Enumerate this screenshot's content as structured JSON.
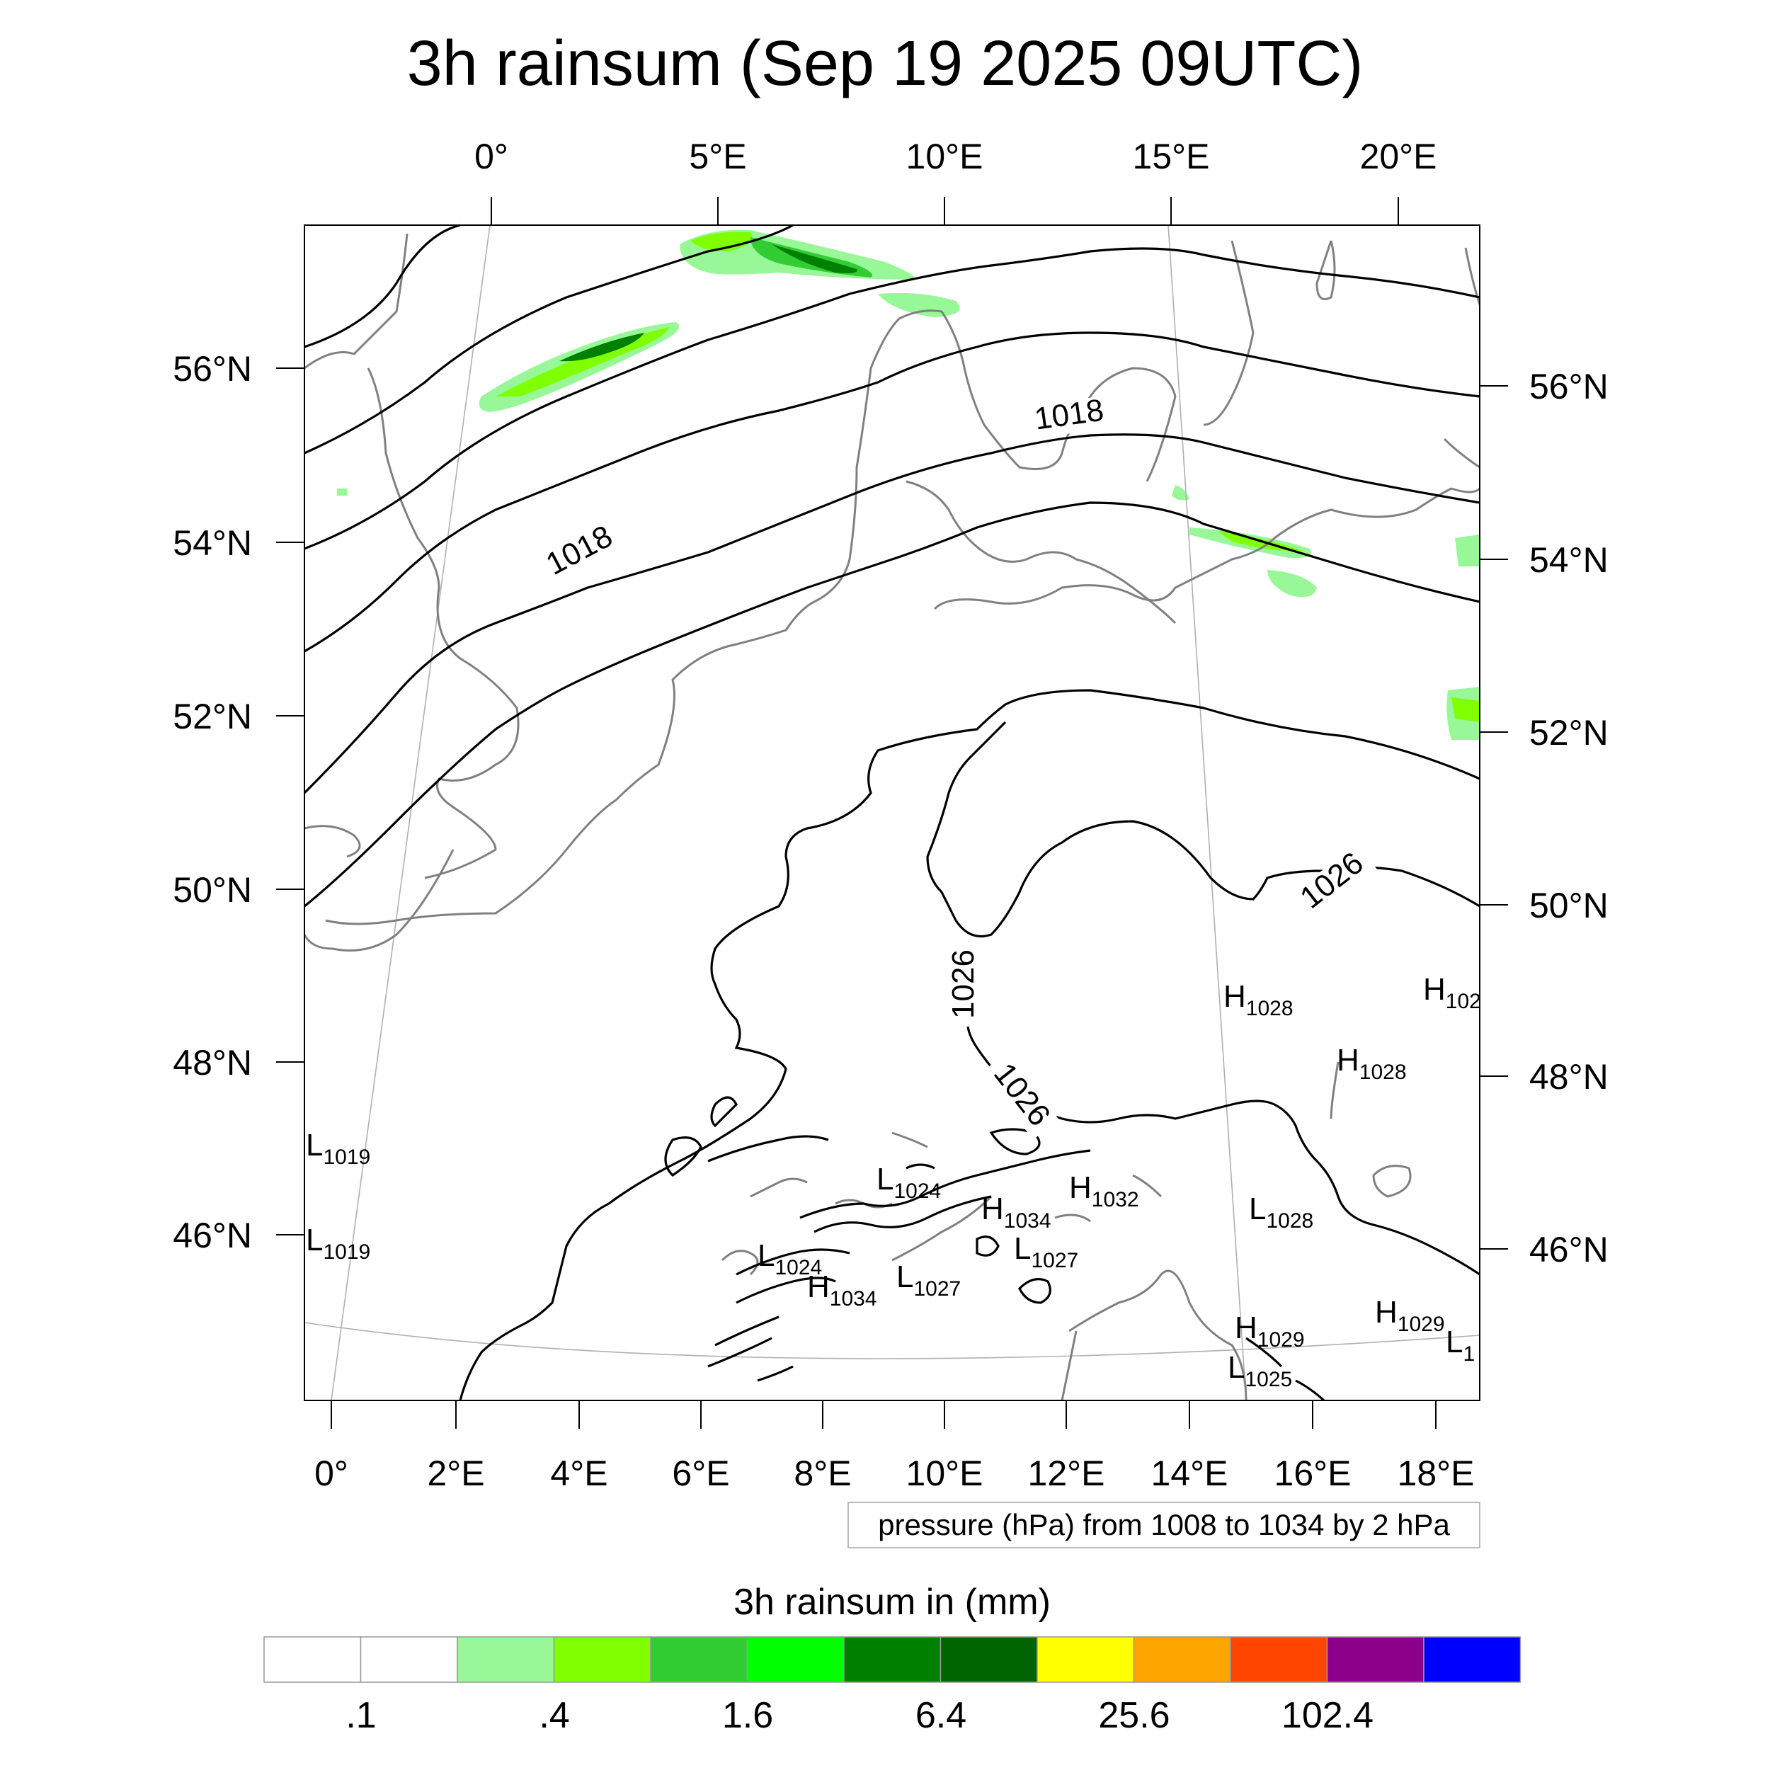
{
  "title": "3h rainsum (Sep 19 2025 09UTC)",
  "top_lon_labels": [
    "0°",
    "5°E",
    "10°E",
    "15°E",
    "20°E"
  ],
  "bottom_lon_labels": [
    "0°",
    "2°E",
    "4°E",
    "6°E",
    "8°E",
    "10°E",
    "12°E",
    "14°E",
    "16°E",
    "18°E"
  ],
  "left_lat_labels": [
    "56°N",
    "54°N",
    "52°N",
    "50°N",
    "48°N",
    "46°N"
  ],
  "right_lat_labels": [
    "56°N",
    "54°N",
    "52°N",
    "50°N",
    "48°N",
    "46°N"
  ],
  "contour_labels": [
    "1018",
    "1018",
    "1026",
    "1026",
    "1026"
  ],
  "pressure_centers": [
    {
      "type": "H",
      "value": "1028"
    },
    {
      "type": "H",
      "value": "102"
    },
    {
      "type": "H",
      "value": "1028"
    },
    {
      "type": "L",
      "value": "1019"
    },
    {
      "type": "L",
      "value": "1024"
    },
    {
      "type": "H",
      "value": "1032"
    },
    {
      "type": "H",
      "value": "1034"
    },
    {
      "type": "L",
      "value": "1028"
    },
    {
      "type": "L",
      "value": "1027"
    },
    {
      "type": "L",
      "value": "1024"
    },
    {
      "type": "L",
      "value": "1027"
    },
    {
      "type": "H",
      "value": "1034"
    },
    {
      "type": "H",
      "value": "1029"
    },
    {
      "type": "H",
      "value": "1029"
    },
    {
      "type": "L",
      "value": "1"
    },
    {
      "type": "L",
      "value": "1025"
    },
    {
      "type": "L",
      "value": "1019"
    }
  ],
  "legend_box": "pressure (hPa) from 1008 to 1034 by 2 hPa",
  "colorbar": {
    "title": "3h rainsum in (mm)",
    "colors": [
      "#ffffff",
      "#ffffff",
      "#98f898",
      "#80ff00",
      "#32cd32",
      "#00ff00",
      "#008000",
      "#006400",
      "#ffff00",
      "#ffa500",
      "#ff4500",
      "#8b008b",
      "#0000ff"
    ],
    "tick_labels": [
      ".1",
      ".4",
      "1.6",
      "6.4",
      "25.6",
      "102.4"
    ]
  }
}
